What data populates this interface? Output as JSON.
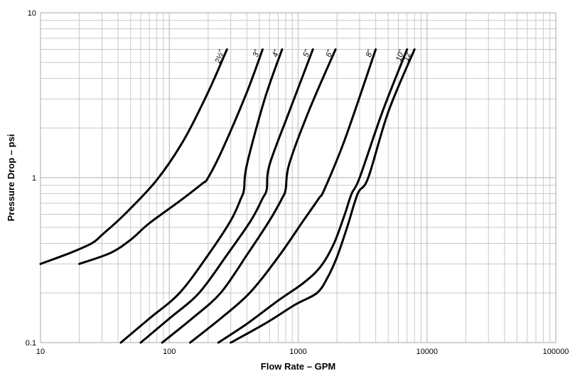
{
  "chart_data": {
    "type": "line",
    "title": "",
    "xlabel": "Flow Rate – GPM",
    "ylabel": "Pressure Drop – psi",
    "x_scale": "log",
    "y_scale": "log",
    "xlim": [
      10,
      100000
    ],
    "ylim": [
      0.1,
      10
    ],
    "grid": true,
    "legend": "none",
    "x_ticks": [
      "10",
      "100",
      "1000",
      "10000",
      "100000"
    ],
    "y_ticks": [
      "0.1",
      "1",
      "10"
    ],
    "line_color": "#000000",
    "grid_color": "#c8c8c8",
    "series": [
      {
        "name": "2½\"",
        "x": [
          10,
          17,
          25,
          30,
          45,
          80,
          130,
          200,
          280
        ],
        "y": [
          0.3,
          0.35,
          0.4,
          0.45,
          0.6,
          0.97,
          1.7,
          3.3,
          6
        ]
      },
      {
        "name": "3\"",
        "x": [
          20,
          35,
          50,
          70,
          120,
          180,
          200,
          260,
          400,
          530
        ],
        "y": [
          0.3,
          0.35,
          0.42,
          0.53,
          0.72,
          0.92,
          1.0,
          1.5,
          3.3,
          6
        ]
      },
      {
        "name": "4\"",
        "x": [
          42,
          70,
          120,
          200,
          300,
          360,
          380,
          400,
          550,
          750
        ],
        "y": [
          0.1,
          0.14,
          0.2,
          0.34,
          0.55,
          0.75,
          0.85,
          1.2,
          3,
          6
        ]
      },
      {
        "name": "5\"",
        "x": [
          60,
          100,
          170,
          280,
          430,
          530,
          570,
          600,
          850,
          1300
        ],
        "y": [
          0.1,
          0.14,
          0.2,
          0.34,
          0.55,
          0.75,
          0.85,
          1.2,
          2.5,
          6
        ]
      },
      {
        "name": "6\"",
        "x": [
          88,
          150,
          250,
          400,
          600,
          750,
          800,
          850,
          1200,
          1950
        ],
        "y": [
          0.1,
          0.14,
          0.2,
          0.34,
          0.55,
          0.75,
          0.85,
          1.2,
          2.5,
          6
        ]
      },
      {
        "name": "8\"",
        "x": [
          145,
          250,
          420,
          700,
          1100,
          1450,
          1600,
          2300,
          4000
        ],
        "y": [
          0.1,
          0.14,
          0.2,
          0.33,
          0.55,
          0.75,
          0.85,
          1.7,
          6
        ]
      },
      {
        "name": "10\"",
        "x": [
          240,
          400,
          700,
          1100,
          1500,
          1900,
          2300,
          2600,
          3000,
          4500,
          7000
        ],
        "y": [
          0.1,
          0.13,
          0.18,
          0.23,
          0.29,
          0.4,
          0.6,
          0.8,
          1.0,
          2.5,
          6
        ]
      },
      {
        "name": "12\"",
        "x": [
          300,
          550,
          950,
          1400,
          1700,
          2000,
          2400,
          2900,
          3500,
          5000,
          8000
        ],
        "y": [
          0.1,
          0.13,
          0.17,
          0.2,
          0.25,
          0.33,
          0.5,
          0.8,
          1.0,
          2.5,
          6
        ]
      }
    ]
  }
}
